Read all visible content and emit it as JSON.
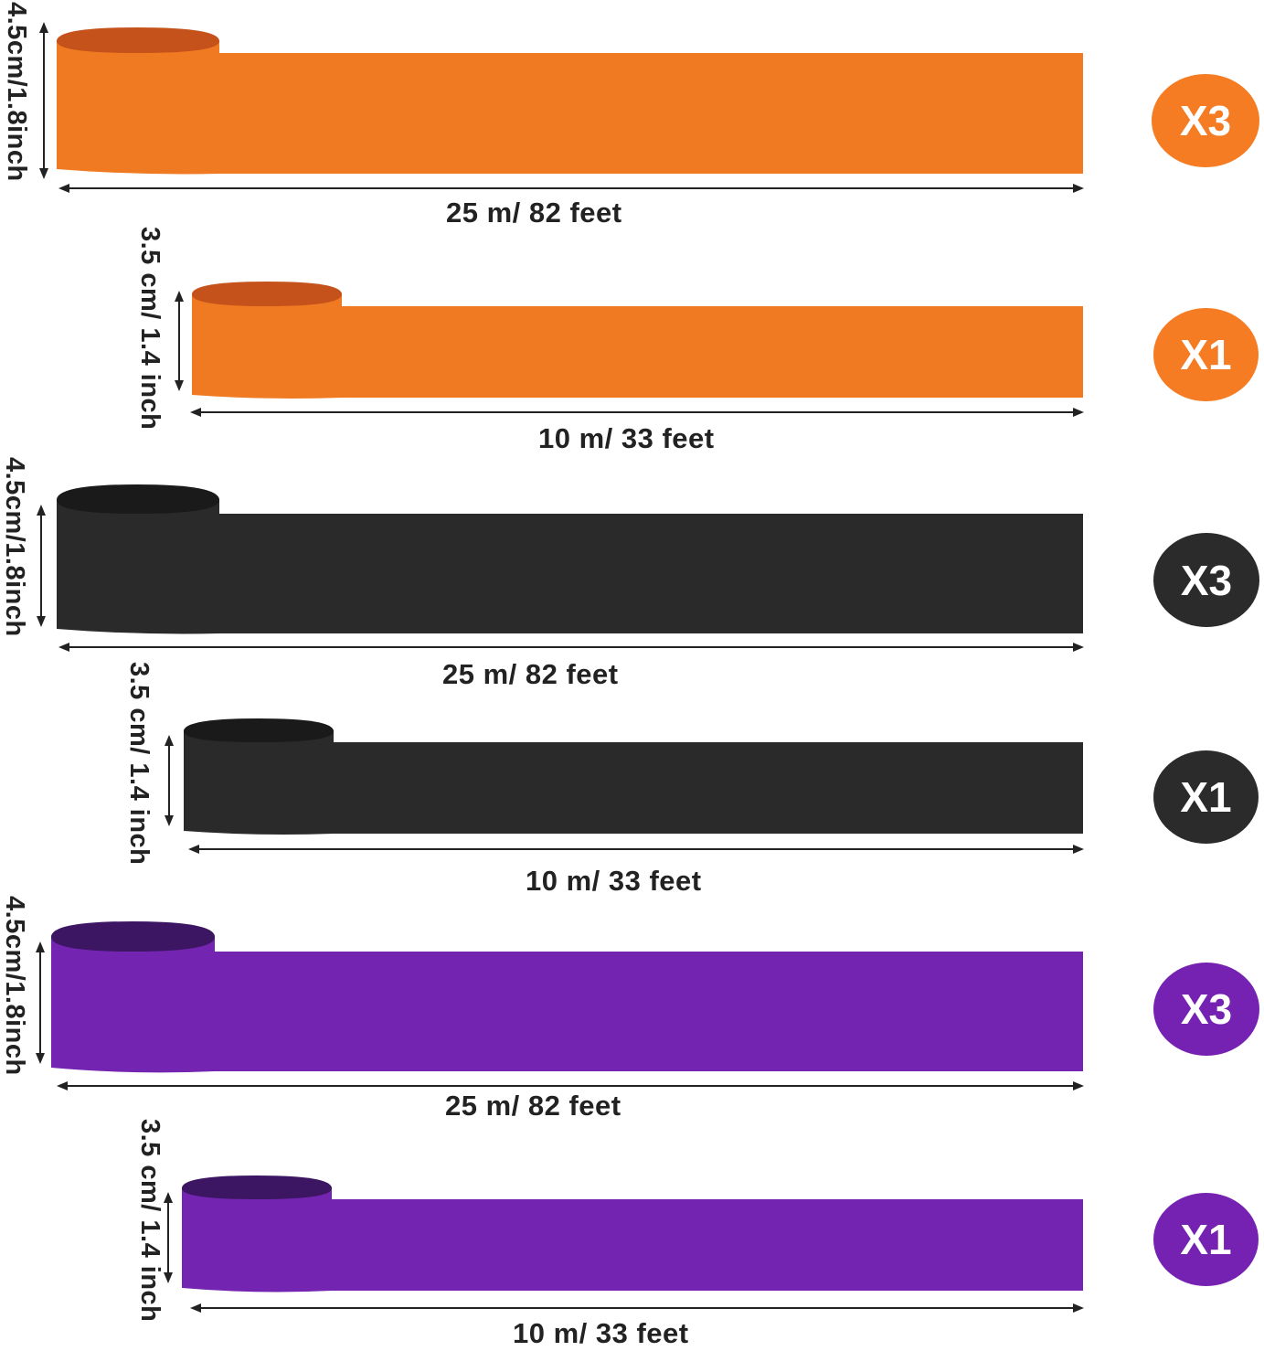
{
  "colors": {
    "orange": "#f07a22",
    "orange_dark": "#c4521a",
    "black": "#2a2a2a",
    "black_dark": "#1a1a1a",
    "purple": "#7324b0",
    "purple_dark": "#3d1663",
    "badge_orange": "#f57c23",
    "badge_black": "#2b2b2b",
    "badge_purple": "#7522b2"
  },
  "rolls": [
    {
      "color": "orange",
      "width_label": "4.5cm/1.8inch",
      "length_label": "25 m/ 82 feet",
      "quantity": "X3"
    },
    {
      "color": "orange",
      "width_label": "3.5 cm/ 1.4 inch",
      "length_label": "10 m/ 33 feet",
      "quantity": "X1"
    },
    {
      "color": "black",
      "width_label": "4.5cm/1.8inch",
      "length_label": "25 m/ 82 feet",
      "quantity": "X3"
    },
    {
      "color": "black",
      "width_label": "3.5 cm/ 1.4 inch",
      "length_label": "10 m/ 33 feet",
      "quantity": "X1"
    },
    {
      "color": "purple",
      "width_label": "4.5cm/1.8inch",
      "length_label": "25 m/ 82 feet",
      "quantity": "X3"
    },
    {
      "color": "purple",
      "width_label": "3.5 cm/ 1.4 inch",
      "length_label": "10 m/ 33 feet",
      "quantity": "X1"
    }
  ]
}
